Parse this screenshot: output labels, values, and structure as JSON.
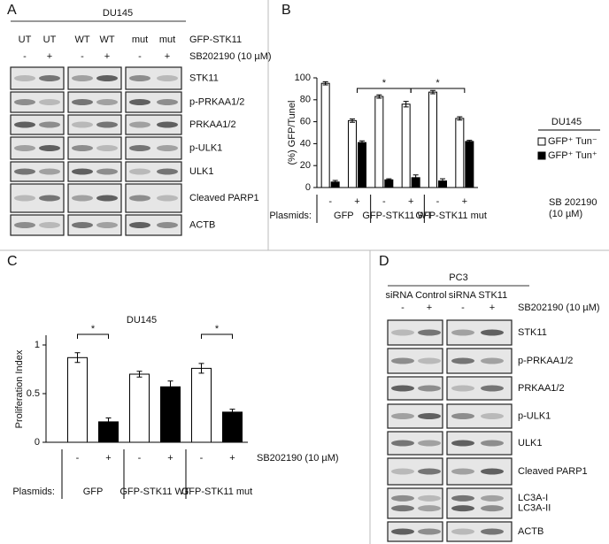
{
  "panels": {
    "a": "A",
    "b": "B",
    "c": "C",
    "d": "D"
  },
  "blot_a": {
    "cell_line": "DU145",
    "lanes": [
      "UT",
      "UT",
      "WT",
      "WT",
      "mut",
      "mut"
    ],
    "treatment": [
      "-",
      "+",
      "-",
      "+",
      "-",
      "+"
    ],
    "lane_row_label": "GFP-STK11",
    "treatment_label": "SB202190 (10 µM)",
    "bands": [
      [
        "STK11"
      ],
      [
        "p-PRKAA1/2"
      ],
      [
        "PRKAA1/2"
      ],
      [
        "p-ULK1"
      ],
      [
        "ULK1"
      ],
      [
        "Cleaved PARP1"
      ],
      [
        "ACTB"
      ]
    ]
  },
  "chart_data": [
    {
      "type": "grouped_bar",
      "ylabel": "(%) GFP/Tunel",
      "categories": [
        "-",
        "+",
        "-",
        "+",
        "-",
        "+"
      ],
      "groups": [
        "GFP",
        "GFP-STK11 WT",
        "GFP-STK11 mut"
      ],
      "group_axis_label": "Plasmids:",
      "note": [
        "SB 202190",
        "(10 µM)"
      ],
      "legend_title": "DU145",
      "series": [
        {
          "name": "GFP⁺ Tun⁻",
          "color": "#ffffff",
          "values": [
            95,
            61,
            83,
            76,
            87,
            63
          ],
          "errors": [
            1.5,
            1.5,
            1.5,
            2.5,
            1.5,
            1.5
          ]
        },
        {
          "name": "GFP⁺ Tun⁺",
          "color": "#000000",
          "values": [
            5,
            41,
            7,
            9,
            6,
            42
          ],
          "errors": [
            1.5,
            1.5,
            1,
            2.5,
            2,
            1
          ]
        }
      ],
      "ylim": [
        0,
        100
      ],
      "yticks": [
        0,
        20,
        40,
        60,
        80,
        100
      ],
      "significance": [
        "*",
        "*"
      ]
    },
    {
      "type": "bar",
      "title": "DU145",
      "ylabel": "Proliferation Index",
      "categories": [
        "-",
        "+",
        "-",
        "+",
        "-",
        "+"
      ],
      "values": [
        0.87,
        0.21,
        0.7,
        0.57,
        0.76,
        0.31
      ],
      "errors": [
        0.05,
        0.04,
        0.03,
        0.06,
        0.05,
        0.03
      ],
      "colors": [
        "#ffffff",
        "#000000",
        "#ffffff",
        "#000000",
        "#ffffff",
        "#000000"
      ],
      "groups": [
        "GFP",
        "GFP-STK11 WT",
        "GFP-STK11 mut"
      ],
      "group_axis_label": "Plasmids:",
      "note": [
        "SB202190 (10 µM)"
      ],
      "ylim": [
        0,
        1.1
      ],
      "yticks": [
        0,
        0.5,
        1
      ],
      "significance": [
        "*",
        "*"
      ]
    }
  ],
  "blot_d": {
    "cell_line": "PC3",
    "groups": [
      "siRNA Control",
      "siRNA STK11"
    ],
    "treatment": [
      "-",
      "+",
      "-",
      "+"
    ],
    "treatment_label": "SB202190 (10 µM)",
    "bands": [
      [
        "STK11"
      ],
      [
        "p-PRKAA1/2"
      ],
      [
        "PRKAA1/2"
      ],
      [
        "p-ULK1"
      ],
      [
        "ULK1"
      ],
      [
        "Cleaved PARP1"
      ],
      [
        "LC3A-I",
        "LC3A-II"
      ],
      [
        "ACTB"
      ]
    ]
  }
}
